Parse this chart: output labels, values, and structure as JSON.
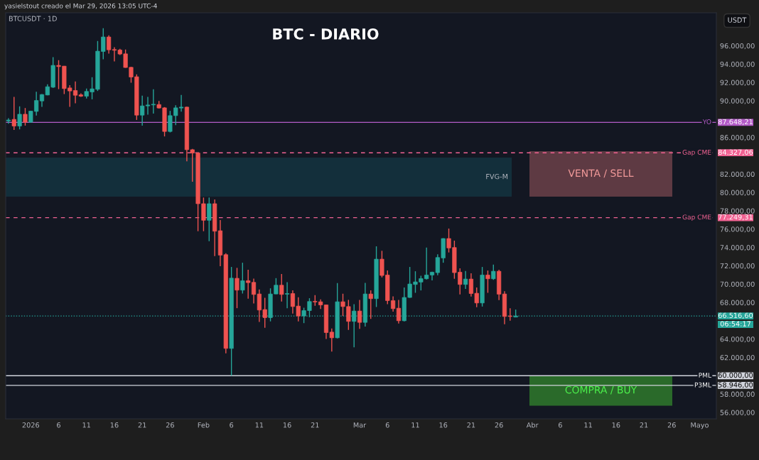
{
  "chart_data": {
    "type": "candlestick",
    "title": "BTC - DIARIO",
    "subtitle": "BTCUSDT · 1D",
    "ylabel": "USDT",
    "annotations": [
      "yasielstout creado el Mar 29, 2026 13:05 UTC-4",
      "87.648,21",
      "84.327,06",
      "77.249,31",
      "66.516,60",
      "06:54:17",
      "60.000,00",
      "58.946,00"
    ],
    "x": [
      "2025-12-28",
      "2025-12-29",
      "2025-12-30",
      "2025-12-31",
      "2026-01-01",
      "2026-01-02",
      "2026-01-03",
      "2026-01-04",
      "2026-01-05",
      "2026-01-06",
      "2026-01-07",
      "2026-01-08",
      "2026-01-09",
      "2026-01-10",
      "2026-01-11",
      "2026-01-12",
      "2026-01-13",
      "2026-01-14",
      "2026-01-15",
      "2026-01-16",
      "2026-01-17",
      "2026-01-18",
      "2026-01-19",
      "2026-01-20",
      "2026-01-21",
      "2026-01-22",
      "2026-01-23",
      "2026-01-24",
      "2026-01-25",
      "2026-01-26",
      "2026-01-27",
      "2026-01-28",
      "2026-01-29",
      "2026-01-30",
      "2026-01-31",
      "2026-02-01",
      "2026-02-02",
      "2026-02-03",
      "2026-02-04",
      "2026-02-05",
      "2026-02-06",
      "2026-02-07",
      "2026-02-08",
      "2026-02-09",
      "2026-02-10",
      "2026-02-11",
      "2026-02-12",
      "2026-02-13",
      "2026-02-14",
      "2026-02-15",
      "2026-02-16",
      "2026-02-17",
      "2026-02-18",
      "2026-02-19",
      "2026-02-20",
      "2026-02-21",
      "2026-02-22",
      "2026-02-23",
      "2026-02-24",
      "2026-02-25",
      "2026-02-26",
      "2026-02-27",
      "2026-02-28",
      "2026-03-01",
      "2026-03-02",
      "2026-03-03",
      "2026-03-04",
      "2026-03-05",
      "2026-03-06",
      "2026-03-07",
      "2026-03-08",
      "2026-03-09",
      "2026-03-10",
      "2026-03-11",
      "2026-03-12",
      "2026-03-13",
      "2026-03-14",
      "2026-03-15",
      "2026-03-16",
      "2026-03-17",
      "2026-03-18",
      "2026-03-19",
      "2026-03-20",
      "2026-03-21",
      "2026-03-22",
      "2026-03-23",
      "2026-03-24",
      "2026-03-25",
      "2026-03-26",
      "2026-03-27",
      "2026-03-28",
      "2026-03-29"
    ],
    "ohlc": [
      [
        87800,
        88100,
        87500,
        87900
      ],
      [
        87970,
        90420,
        86830,
        87240
      ],
      [
        87240,
        89390,
        86880,
        88530
      ],
      [
        88530,
        89210,
        87290,
        87660
      ],
      [
        87660,
        88900,
        87600,
        88870
      ],
      [
        88840,
        90990,
        88380,
        90030
      ],
      [
        89980,
        90730,
        89340,
        90680
      ],
      [
        90630,
        91790,
        90600,
        91530
      ],
      [
        91480,
        94760,
        91400,
        93860
      ],
      [
        93860,
        94430,
        91270,
        93730
      ],
      [
        93780,
        93800,
        90730,
        91330
      ],
      [
        91400,
        91710,
        89340,
        91070
      ],
      [
        91120,
        92100,
        89720,
        90600
      ],
      [
        90650,
        90810,
        90420,
        90500
      ],
      [
        90500,
        91330,
        90240,
        91020
      ],
      [
        90960,
        92570,
        90160,
        91300
      ],
      [
        91250,
        96520,
        91070,
        95410
      ],
      [
        95380,
        97910,
        94530,
        96960
      ],
      [
        96960,
        97140,
        95150,
        95560
      ],
      [
        95590,
        95850,
        94300,
        95510
      ],
      [
        95540,
        95670,
        94990,
        95100
      ],
      [
        95120,
        95590,
        93600,
        93630
      ],
      [
        93650,
        93700,
        91970,
        92590
      ],
      [
        92620,
        92880,
        87910,
        88430
      ],
      [
        88430,
        90550,
        87290,
        89440
      ],
      [
        89440,
        90420,
        88480,
        89540
      ],
      [
        89550,
        91250,
        88610,
        89620
      ],
      [
        89590,
        89980,
        89150,
        89210
      ],
      [
        89230,
        89310,
        86110,
        86650
      ],
      [
        86650,
        88900,
        86550,
        88380
      ],
      [
        88380,
        89520,
        87350,
        89230
      ],
      [
        89210,
        90630,
        88820,
        89310
      ],
      [
        89310,
        89350,
        83390,
        84660
      ],
      [
        84660,
        84740,
        81170,
        84300
      ],
      [
        84300,
        84330,
        75770,
        78770
      ],
      [
        78770,
        79440,
        75770,
        76960
      ],
      [
        76960,
        79440,
        74690,
        78770
      ],
      [
        78770,
        79230,
        73060,
        75770
      ],
      [
        75820,
        76980,
        71950,
        73160
      ],
      [
        73210,
        73370,
        62440,
        62980
      ],
      [
        62980,
        71870,
        60000,
        70650
      ],
      [
        70630,
        71770,
        67370,
        69340
      ],
      [
        69340,
        72330,
        68970,
        70370
      ],
      [
        70370,
        71560,
        68410,
        70160
      ],
      [
        70190,
        70600,
        67890,
        68870
      ],
      [
        68920,
        69410,
        65870,
        67170
      ],
      [
        67220,
        68510,
        65230,
        66340
      ],
      [
        66340,
        69540,
        65930,
        68920
      ],
      [
        68920,
        70650,
        68900,
        69880
      ],
      [
        69880,
        71090,
        68100,
        68870
      ],
      [
        68900,
        70210,
        67370,
        68970
      ],
      [
        68970,
        69310,
        66780,
        67550
      ],
      [
        67600,
        68560,
        65930,
        66520
      ],
      [
        66520,
        67420,
        65740,
        67110
      ],
      [
        67110,
        68460,
        66390,
        68100
      ],
      [
        68120,
        68790,
        67630,
        68050
      ],
      [
        68070,
        68330,
        67290,
        67730
      ],
      [
        67730,
        67750,
        64010,
        64710
      ],
      [
        64760,
        65150,
        62640,
        64140
      ],
      [
        64140,
        70110,
        64070,
        68070
      ],
      [
        68070,
        68950,
        66520,
        67550
      ],
      [
        67550,
        68280,
        65000,
        65930
      ],
      [
        65930,
        67810,
        63110,
        67060
      ],
      [
        67060,
        68280,
        65120,
        65820
      ],
      [
        65820,
        70140,
        65360,
        68920
      ],
      [
        68920,
        69310,
        66210,
        68410
      ],
      [
        68410,
        74120,
        67500,
        72720
      ],
      [
        72720,
        73630,
        70730,
        70940
      ],
      [
        70990,
        71480,
        67810,
        68200
      ],
      [
        68200,
        68660,
        66990,
        67320
      ],
      [
        67370,
        68280,
        65690,
        66000
      ],
      [
        66000,
        69620,
        65930,
        68540
      ],
      [
        68540,
        71870,
        68500,
        70010
      ],
      [
        69960,
        71400,
        69050,
        70240
      ],
      [
        70220,
        70910,
        69310,
        70600
      ],
      [
        70580,
        73990,
        70500,
        70990
      ],
      [
        70990,
        71350,
        70400,
        71300
      ],
      [
        71250,
        73240,
        70960,
        72900
      ],
      [
        72850,
        75000,
        72330,
        74970
      ],
      [
        74970,
        76060,
        73450,
        73940
      ],
      [
        73990,
        74740,
        70580,
        71250
      ],
      [
        71300,
        71710,
        68870,
        69960
      ],
      [
        69960,
        71430,
        69470,
        70550
      ],
      [
        70550,
        71170,
        68640,
        68970
      ],
      [
        69000,
        69620,
        67480,
        67940
      ],
      [
        67940,
        71870,
        67550,
        70990
      ],
      [
        70990,
        71480,
        69050,
        70580
      ],
      [
        70580,
        72130,
        70470,
        71400
      ],
      [
        71400,
        71560,
        68250,
        68900
      ],
      [
        68920,
        69230,
        65620,
        66470
      ],
      [
        66520,
        67370,
        66000,
        66470
      ],
      [
        66400,
        67220,
        66390,
        66516.6
      ]
    ],
    "xlim": [
      "2025-12-27T12:00",
      "2026-05-04"
    ],
    "xticks": [
      {
        "value": "2026-01-01",
        "label": "2026"
      },
      {
        "value": "2026-01-06",
        "label": "6"
      },
      {
        "value": "2026-01-11",
        "label": "11"
      },
      {
        "value": "2026-01-16",
        "label": "16"
      },
      {
        "value": "2026-01-21",
        "label": "21"
      },
      {
        "value": "2026-01-26",
        "label": "26"
      },
      {
        "value": "2026-02-01",
        "label": "Feb"
      },
      {
        "value": "2026-02-06",
        "label": "6"
      },
      {
        "value": "2026-02-11",
        "label": "11"
      },
      {
        "value": "2026-02-16",
        "label": "16"
      },
      {
        "value": "2026-02-21",
        "label": "21"
      },
      {
        "value": "2026-03-01",
        "label": "Mar"
      },
      {
        "value": "2026-03-06",
        "label": "6"
      },
      {
        "value": "2026-03-11",
        "label": "11"
      },
      {
        "value": "2026-03-16",
        "label": "16"
      },
      {
        "value": "2026-03-21",
        "label": "21"
      },
      {
        "value": "2026-03-26",
        "label": "26"
      },
      {
        "value": "2026-04-01",
        "label": "Abr"
      },
      {
        "value": "2026-04-06",
        "label": "6"
      },
      {
        "value": "2026-04-11",
        "label": "11"
      },
      {
        "value": "2026-04-16",
        "label": "16"
      },
      {
        "value": "2026-04-21",
        "label": "21"
      },
      {
        "value": "2026-04-26",
        "label": "26"
      },
      {
        "value": "2026-05-01",
        "label": "Mayo"
      }
    ],
    "ylim": [
      55300,
      99600
    ],
    "yticks": [
      {
        "value": 56000,
        "label": "56.000,00"
      },
      {
        "value": 58000,
        "label": "58.000,00"
      },
      {
        "value": 62000,
        "label": "62.000,00"
      },
      {
        "value": 64000,
        "label": "64.000,00"
      },
      {
        "value": 68000,
        "label": "68.000,00"
      },
      {
        "value": 70000,
        "label": "70.000,00"
      },
      {
        "value": 72000,
        "label": "72.000,00"
      },
      {
        "value": 74000,
        "label": "74.000,00"
      },
      {
        "value": 76000,
        "label": "76.000,00"
      },
      {
        "value": 78000,
        "label": "78.000,00"
      },
      {
        "value": 80000,
        "label": "80.000,00"
      },
      {
        "value": 82000,
        "label": "82.000,00"
      },
      {
        "value": 86000,
        "label": "86.000,00"
      },
      {
        "value": 90000,
        "label": "90.000,00"
      },
      {
        "value": 92000,
        "label": "92.000,00"
      },
      {
        "value": 94000,
        "label": "94.000,00"
      },
      {
        "value": 96000,
        "label": "96.000,00"
      }
    ],
    "ref_lines": [
      {
        "axis": "y",
        "value": 87648.21,
        "label": "YO",
        "color": "#b35bc7",
        "line_style": "solid"
      },
      {
        "axis": "y",
        "value": 84327.06,
        "label": "Gap CME",
        "color": "#f06292",
        "line_style": "dashed"
      },
      {
        "axis": "y",
        "value": 77249.31,
        "label": "Gap CME",
        "color": "#f06292",
        "line_style": "dashed"
      },
      {
        "axis": "y",
        "value": 66516.6,
        "color": "#26a69a",
        "line_style": "dotted"
      },
      {
        "axis": "y",
        "value": 60000,
        "label": "PML",
        "color": "#d1d4dc",
        "line_style": "solid"
      },
      {
        "axis": "y",
        "value": 58946,
        "label": "P3ML",
        "color": "#d1d4dc",
        "line_style": "solid"
      }
    ],
    "bands": [
      {
        "axis": "y",
        "from": 79540,
        "to": 83800,
        "label": "FVG-M",
        "color": "#132f3b"
      },
      {
        "axis": "y",
        "from": 79540,
        "to": 84490,
        "label": "VENTA / SELL",
        "color": "#5e3a43"
      },
      {
        "axis": "y",
        "from": 56740,
        "to": 60000,
        "label": "COMPRA / BUY",
        "color": "#2a6a2a"
      }
    ],
    "grid": false,
    "legend": false
  }
}
